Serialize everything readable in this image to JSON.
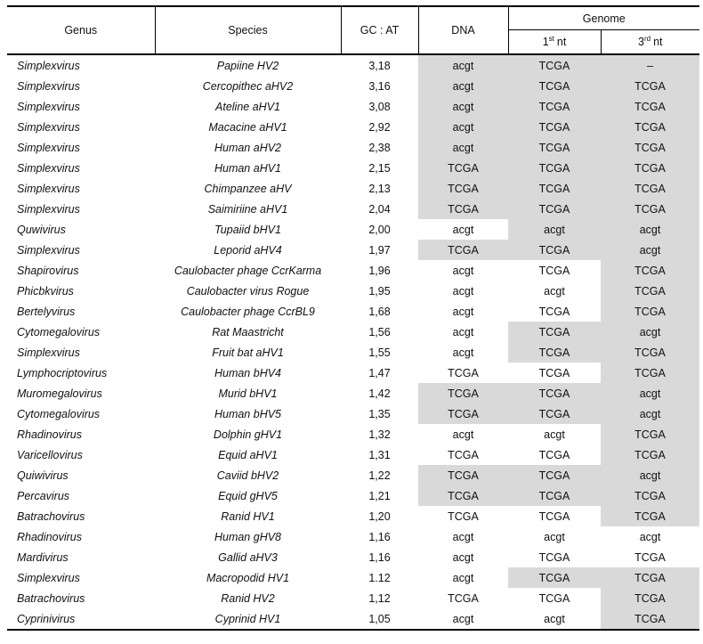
{
  "page": {
    "background": "#ffffff",
    "text_color": "#111111",
    "border_color": "#000000"
  },
  "table": {
    "colors": {
      "shaded_cell": "#d9d9d9"
    },
    "header": {
      "genus": "Genus",
      "species": "Species",
      "gc_at": "GC : AT",
      "dna": "DNA",
      "genome": "Genome",
      "nt1": {
        "num": "1",
        "ord": "st",
        "rest": "nt"
      },
      "nt3": {
        "num": "3",
        "ord": "rd",
        "rest": "nt"
      }
    },
    "rows": [
      {
        "genus": "Simplexvirus",
        "species": "Papiine HV2",
        "gc_at": "3,18",
        "dna": "acgt",
        "nt1": "TCGA",
        "nt3": "–",
        "shade": {
          "dna": true,
          "nt1": true,
          "nt3": true
        }
      },
      {
        "genus": "Simplexvirus",
        "species": "Cercopithec aHV2",
        "gc_at": "3,16",
        "dna": "acgt",
        "nt1": "TCGA",
        "nt3": "TCGA",
        "shade": {
          "dna": true,
          "nt1": true,
          "nt3": true
        }
      },
      {
        "genus": "Simplexvirus",
        "species": "Ateline aHV1",
        "gc_at": "3,08",
        "dna": "acgt",
        "nt1": "TCGA",
        "nt3": "TCGA",
        "shade": {
          "dna": true,
          "nt1": true,
          "nt3": true
        }
      },
      {
        "genus": "Simplexvirus",
        "species": "Macacine aHV1",
        "gc_at": "2,92",
        "dna": "acgt",
        "nt1": "TCGA",
        "nt3": "TCGA",
        "shade": {
          "dna": true,
          "nt1": true,
          "nt3": true
        }
      },
      {
        "genus": "Simplexvirus",
        "species": "Human aHV2",
        "gc_at": "2,38",
        "dna": "acgt",
        "nt1": "TCGA",
        "nt3": "TCGA",
        "shade": {
          "dna": true,
          "nt1": true,
          "nt3": true
        }
      },
      {
        "genus": "Simplexvirus",
        "species": "Human aHV1",
        "gc_at": "2,15",
        "dna": "TCGA",
        "nt1": "TCGA",
        "nt3": "TCGA",
        "shade": {
          "dna": true,
          "nt1": true,
          "nt3": true
        }
      },
      {
        "genus": "Simplexvirus",
        "species": "Chimpanzee aHV",
        "gc_at": "2,13",
        "dna": "TCGA",
        "nt1": "TCGA",
        "nt3": "TCGA",
        "shade": {
          "dna": true,
          "nt1": true,
          "nt3": true
        }
      },
      {
        "genus": "Simplexvirus",
        "species": "Saimiriine aHV1",
        "gc_at": "2,04",
        "dna": "TCGA",
        "nt1": "TCGA",
        "nt3": "TCGA",
        "shade": {
          "dna": true,
          "nt1": true,
          "nt3": true
        }
      },
      {
        "genus": "Quwivirus",
        "species": "Tupaiid bHV1",
        "gc_at": "2,00",
        "dna": "acgt",
        "nt1": "acgt",
        "nt3": "acgt",
        "shade": {
          "dna": false,
          "nt1": true,
          "nt3": true
        }
      },
      {
        "genus": "Simplexvirus",
        "species": "Leporid aHV4",
        "gc_at": "1,97",
        "dna": "TCGA",
        "nt1": "TCGA",
        "nt3": "acgt",
        "shade": {
          "dna": true,
          "nt1": true,
          "nt3": true
        }
      },
      {
        "genus": "Shapirovirus",
        "species": "Caulobacter phage CcrKarma",
        "gc_at": "1,96",
        "dna": "acgt",
        "nt1": "TCGA",
        "nt3": "TCGA",
        "shade": {
          "dna": false,
          "nt1": false,
          "nt3": true
        }
      },
      {
        "genus": "Phicbkvirus",
        "species": "Caulobacter virus Rogue",
        "gc_at": "1,95",
        "dna": "acgt",
        "nt1": "acgt",
        "nt3": "TCGA",
        "shade": {
          "dna": false,
          "nt1": false,
          "nt3": true
        }
      },
      {
        "genus": "Bertelyvirus",
        "species": "Caulobacter phage CcrBL9",
        "gc_at": "1,68",
        "dna": "acgt",
        "nt1": "TCGA",
        "nt3": "TCGA",
        "shade": {
          "dna": false,
          "nt1": false,
          "nt3": true
        }
      },
      {
        "genus": "Cytomegalovirus",
        "species": "Rat Maastricht",
        "gc_at": "1,56",
        "dna": "acgt",
        "nt1": "TCGA",
        "nt3": "acgt",
        "shade": {
          "dna": false,
          "nt1": true,
          "nt3": true
        }
      },
      {
        "genus": "Simplexvirus",
        "species": "Fruit bat aHV1",
        "gc_at": "1,55",
        "dna": "acgt",
        "nt1": "TCGA",
        "nt3": "TCGA",
        "shade": {
          "dna": false,
          "nt1": true,
          "nt3": true
        }
      },
      {
        "genus": "Lymphocriptovirus",
        "species": "Human bHV4",
        "gc_at": "1,47",
        "dna": "TCGA",
        "nt1": "TCGA",
        "nt3": "TCGA",
        "shade": {
          "dna": false,
          "nt1": false,
          "nt3": true
        }
      },
      {
        "genus": "Muromegalovirus",
        "species": "Murid bHV1",
        "gc_at": "1,42",
        "dna": "TCGA",
        "nt1": "TCGA",
        "nt3": "acgt",
        "shade": {
          "dna": true,
          "nt1": true,
          "nt3": true
        }
      },
      {
        "genus": "Cytomegalovirus",
        "species": "Human bHV5",
        "gc_at": "1,35",
        "dna": "TCGA",
        "nt1": "TCGA",
        "nt3": "acgt",
        "shade": {
          "dna": true,
          "nt1": true,
          "nt3": true
        }
      },
      {
        "genus": "Rhadinovirus",
        "species": "Dolphin gHV1",
        "gc_at": "1,32",
        "dna": "acgt",
        "nt1": "acgt",
        "nt3": "TCGA",
        "shade": {
          "dna": false,
          "nt1": false,
          "nt3": true
        }
      },
      {
        "genus": "Varicellovirus",
        "species": "Equid aHV1",
        "gc_at": "1,31",
        "dna": "TCGA",
        "nt1": "TCGA",
        "nt3": "TCGA",
        "shade": {
          "dna": false,
          "nt1": false,
          "nt3": true
        }
      },
      {
        "genus": "Quiwivirus",
        "species": "Caviid bHV2",
        "gc_at": "1,22",
        "dna": "TCGA",
        "nt1": "TCGA",
        "nt3": "acgt",
        "shade": {
          "dna": true,
          "nt1": true,
          "nt3": true
        }
      },
      {
        "genus": "Percavirus",
        "species": "Equid gHV5",
        "gc_at": "1,21",
        "dna": "TCGA",
        "nt1": "TCGA",
        "nt3": "TCGA",
        "shade": {
          "dna": true,
          "nt1": true,
          "nt3": true
        }
      },
      {
        "genus": "Batrachovirus",
        "species": "Ranid HV1",
        "gc_at": "1,20",
        "dna": "TCGA",
        "nt1": "TCGA",
        "nt3": "TCGA",
        "shade": {
          "dna": false,
          "nt1": false,
          "nt3": true
        }
      },
      {
        "genus": "Rhadinovirus",
        "species": "Human gHV8",
        "gc_at": "1,16",
        "dna": "acgt",
        "nt1": "acgt",
        "nt3": "acgt",
        "shade": {
          "dna": false,
          "nt1": false,
          "nt3": false
        }
      },
      {
        "genus": "Mardivirus",
        "species": "Gallid aHV3",
        "gc_at": "1,16",
        "dna": "acgt",
        "nt1": "TCGA",
        "nt3": "TCGA",
        "shade": {
          "dna": false,
          "nt1": false,
          "nt3": false
        }
      },
      {
        "genus": "Simplexvirus",
        "species": "Macropodid HV1",
        "gc_at": "1.12",
        "dna": "acgt",
        "nt1": "TCGA",
        "nt3": "TCGA",
        "shade": {
          "dna": false,
          "nt1": true,
          "nt3": true
        }
      },
      {
        "genus": "Batrachovirus",
        "species": "Ranid HV2",
        "gc_at": "1,12",
        "dna": "TCGA",
        "nt1": "TCGA",
        "nt3": "TCGA",
        "shade": {
          "dna": false,
          "nt1": false,
          "nt3": true
        }
      },
      {
        "genus": "Cyprinivirus",
        "species": "Cyprinid HV1",
        "gc_at": "1,05",
        "dna": "acgt",
        "nt1": "acgt",
        "nt3": "TCGA",
        "shade": {
          "dna": false,
          "nt1": false,
          "nt3": true
        }
      }
    ]
  }
}
